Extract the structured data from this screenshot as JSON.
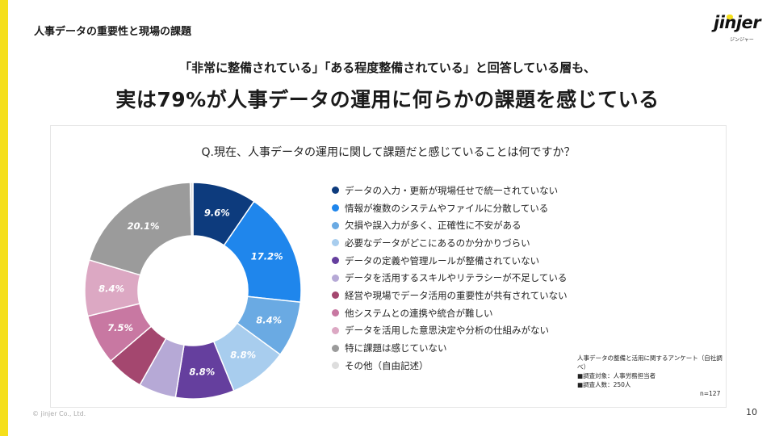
{
  "header": {
    "section_title": "人事データの重要性と現場の課題",
    "logo_text": "jinjer",
    "logo_sub": "ジンジャー"
  },
  "headline": {
    "sub": "「非常に整備されている」「ある程度整備されている」と回答している層も、",
    "main": "実は79%が人事データの運用に何らかの課題を感じている"
  },
  "colors": {
    "accent": "#f5df1b"
  },
  "chart_data": {
    "type": "pie",
    "title": "Q.現在、人事データの運用に関して課題だと感じていることは何ですか？",
    "donut": true,
    "legend_position": "right",
    "slices": [
      {
        "label": "データの入力・更新が現場任せで統一されていない",
        "value": 9.6,
        "value_label": "9.6%",
        "color": "#0d3b7d"
      },
      {
        "label": "情報が複数のシステムやファイルに分散している",
        "value": 17.2,
        "value_label": "17.2%",
        "color": "#1f86ec"
      },
      {
        "label": "欠損や誤入力が多く、正確性に不安がある",
        "value": 8.4,
        "value_label": "8.4%",
        "color": "#6aaae3"
      },
      {
        "label": "必要なデータがどこにあるのか分かりづらい",
        "value": 8.8,
        "value_label": "8.8%",
        "color": "#a8cdee"
      },
      {
        "label": "データの定義や管理ルールが整備されていない",
        "value": 8.8,
        "value_label": "8.8%",
        "color": "#653f9e"
      },
      {
        "label": "データを活用するスキルやリテラシーが不足している",
        "value": 5.6,
        "value_label": "",
        "color": "#b6a9d6"
      },
      {
        "label": "経営や現場でデータ活用の重要性が共有されていない",
        "value": 5.6,
        "value_label": "",
        "color": "#a4476f"
      },
      {
        "label": "他システムとの連携や統合が難しい",
        "value": 7.5,
        "value_label": "7.5%",
        "color": "#c878a2"
      },
      {
        "label": "データを活用した意思決定や分析の仕組みがない",
        "value": 8.4,
        "value_label": "8.4%",
        "color": "#dca8c3"
      },
      {
        "label": "特に課題は感じていない",
        "value": 20.1,
        "value_label": "20.1%",
        "color": "#9b9b9b"
      },
      {
        "label": "その他（自由記述）",
        "value": 0.4,
        "value_label": "",
        "color": "#dddddd"
      }
    ]
  },
  "survey": {
    "title": "人事データの整備と活用に関するアンケート（自社調べ）",
    "target": "■調査対象：人事労務担当者",
    "count": "■調査人数：250人",
    "sample_size": "n=127"
  },
  "footer": {
    "copyright": "© jinjer Co., Ltd.",
    "page_number": "10"
  }
}
